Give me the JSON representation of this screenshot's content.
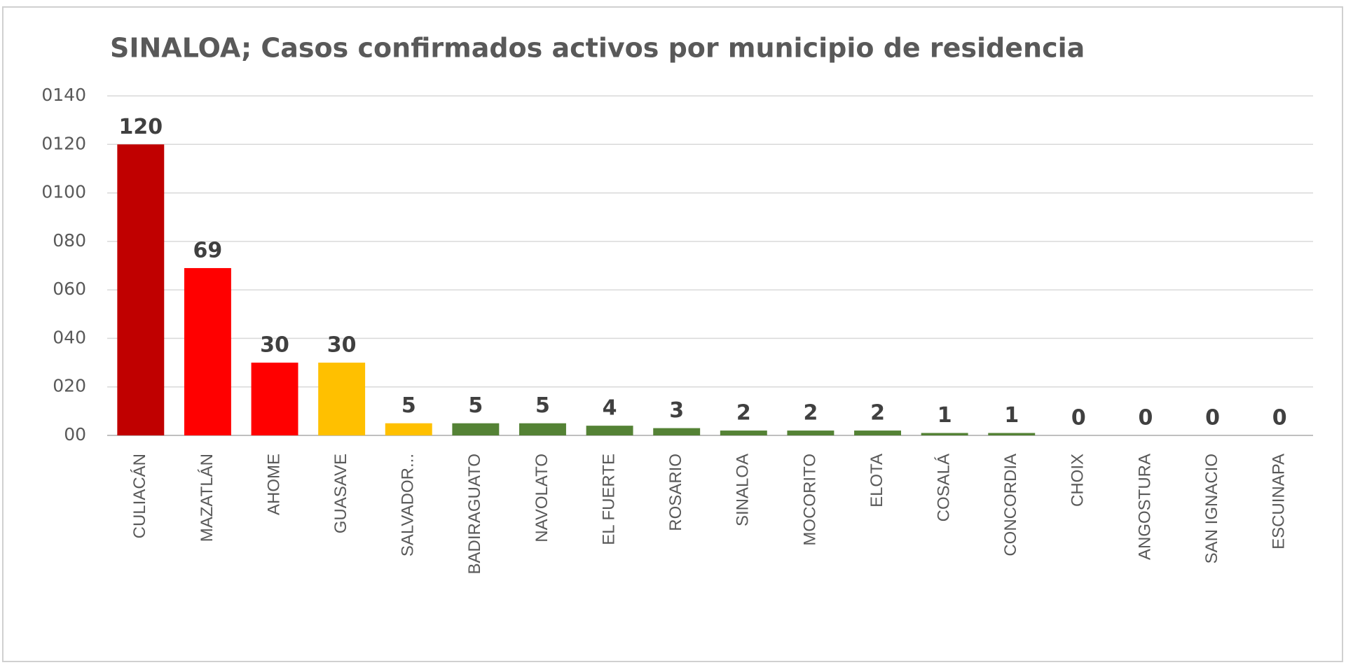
{
  "chart_data": {
    "type": "bar",
    "title": "SINALOA; Casos confirmados activos por municipio de residencia",
    "categories": [
      "CULIACÁN",
      "MAZATLÁN",
      "AHOME",
      "GUASAVE",
      "SALVADOR...",
      "BADIRAGUATO",
      "NAVOLATO",
      "EL FUERTE",
      "ROSARIO",
      "SINALOA",
      "MOCORITO",
      "ELOTA",
      "COSALÁ",
      "CONCORDIA",
      "CHOIX",
      "ANGOSTURA",
      "SAN IGNACIO",
      "ESCUINAPA"
    ],
    "values": [
      120,
      69,
      30,
      30,
      5,
      5,
      5,
      4,
      3,
      2,
      2,
      2,
      1,
      1,
      0,
      0,
      0,
      0
    ],
    "colors": [
      "#c00000",
      "#ff0000",
      "#ff0000",
      "#ffc000",
      "#ffc000",
      "#548235",
      "#548235",
      "#548235",
      "#548235",
      "#548235",
      "#548235",
      "#548235",
      "#548235",
      "#548235",
      "#548235",
      "#548235",
      "#548235",
      "#548235"
    ],
    "ylim": [
      0,
      140
    ],
    "yticks": [
      {
        "value": 0,
        "label": "00"
      },
      {
        "value": 20,
        "label": "020"
      },
      {
        "value": 40,
        "label": "040"
      },
      {
        "value": 60,
        "label": "060"
      },
      {
        "value": 80,
        "label": "080"
      },
      {
        "value": 100,
        "label": "0100"
      },
      {
        "value": 120,
        "label": "0120"
      },
      {
        "value": 140,
        "label": "0140"
      }
    ],
    "grid": true
  }
}
